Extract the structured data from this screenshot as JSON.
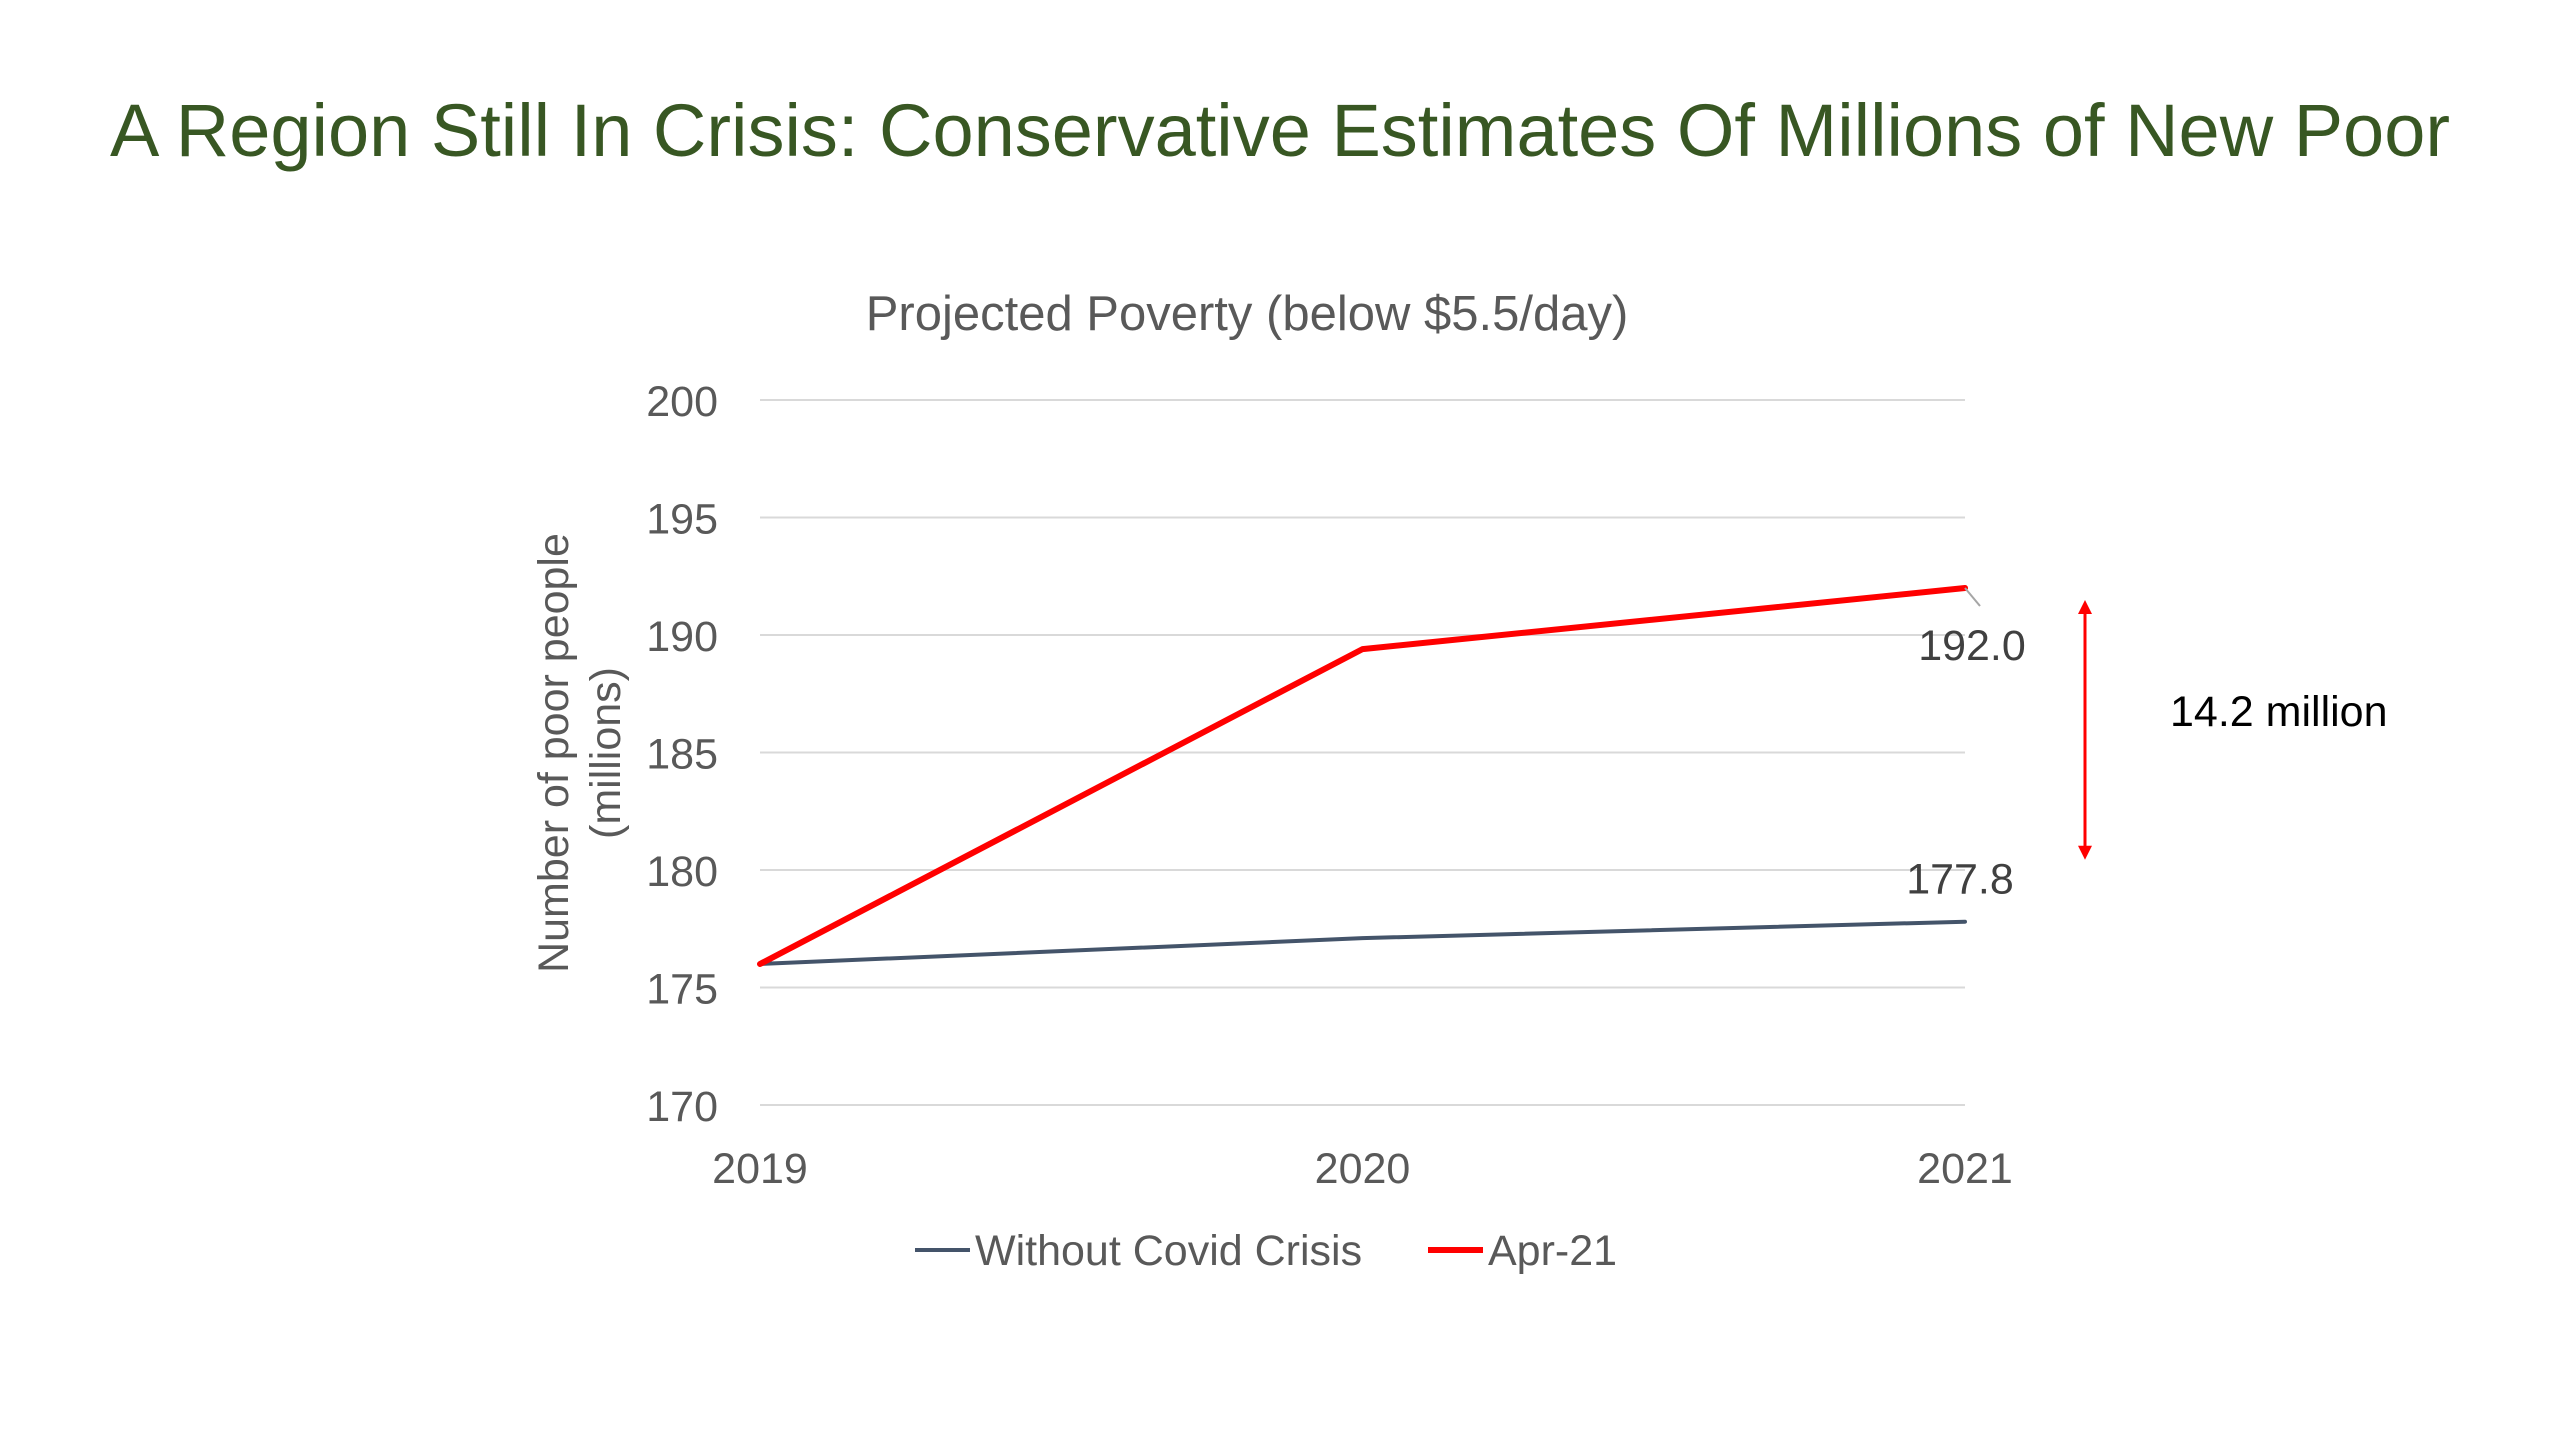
{
  "slide": {
    "title": "A Region Still In Crisis: Conservative Estimates Of Millions of New Poor"
  },
  "chart_data": {
    "type": "line",
    "title": "Projected Poverty (below $5.5/day)",
    "xlabel": "",
    "ylabel": "Number of poor people (millions)",
    "ylabel_lines": [
      "Number of poor people",
      "(millions)"
    ],
    "categories": [
      "2019",
      "2020",
      "2021"
    ],
    "yticks": [
      "170",
      "175",
      "180",
      "185",
      "190",
      "195",
      "200"
    ],
    "ylim": [
      170,
      200
    ],
    "grid": true,
    "legend_position": "bottom",
    "series": [
      {
        "name": "Without Covid Crisis",
        "values": [
          176.0,
          177.1,
          177.8
        ],
        "color": "#44546A",
        "end_label": "177.8"
      },
      {
        "name": "Apr-21",
        "values": [
          176.0,
          189.4,
          192.0
        ],
        "color": "#FF0000",
        "end_label": "192.0"
      }
    ],
    "annotation": {
      "label": "14.2 million",
      "color": "#FF0000"
    }
  }
}
